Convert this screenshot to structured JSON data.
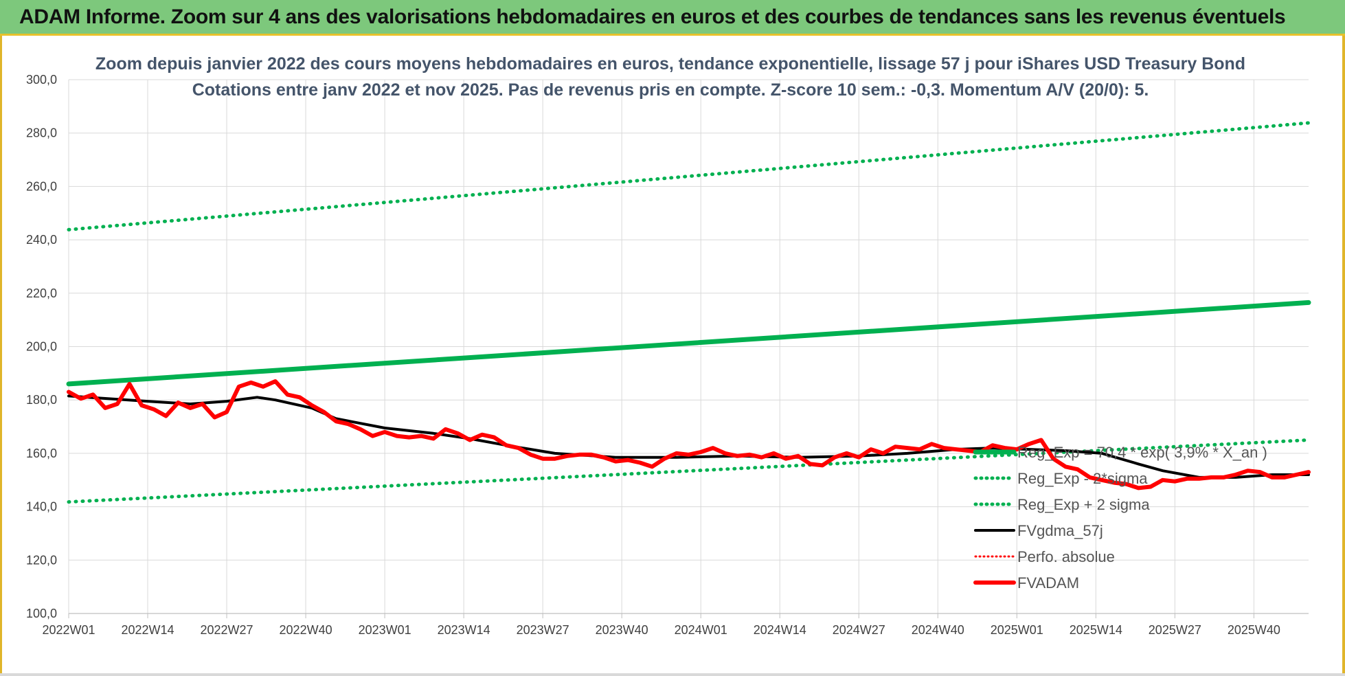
{
  "banner": {
    "title": "ADAM Informe. Zoom sur 4 ans des valorisations hebdomadaires en euros et des courbes de tendances sans les revenus éventuels"
  },
  "colors": {
    "banner_bg": "#7dc87c",
    "trend": "#00b050",
    "price": "#ff0000",
    "mma": "#000000",
    "grid": "#d9d9d9"
  },
  "chart_data": {
    "type": "line",
    "title": [
      "Zoom depuis janvier 2022 des cours moyens hebdomadaires en euros, tendance exponentielle, lissage 57 j pour iShares USD Treasury Bond",
      "Cotations entre janv 2022 et nov 2025. Pas de revenus pris en compte. Z-score 10 sem.: -0,3. Momentum A/V (20/0): 5."
    ],
    "ylim": [
      100,
      300
    ],
    "y_ticks": [
      "100,0",
      "120,0",
      "140,0",
      "160,0",
      "180,0",
      "200,0",
      "220,0",
      "240,0",
      "260,0",
      "280,0",
      "300,0"
    ],
    "x_ticks": [
      "2022W01",
      "2022W14",
      "2022W27",
      "2022W40",
      "2023W01",
      "2023W14",
      "2023W27",
      "2023W40",
      "2024W01",
      "2024W14",
      "2024W27",
      "2024W40",
      "2025W01",
      "2025W14",
      "2025W27",
      "2025W40"
    ],
    "x_weeks_total": 204,
    "legend": {
      "trend": "Reg_Exp = 70,4 * exp( 3,9% * X_an )",
      "lower": "Reg_Exp - 2*sigma",
      "upper": "Reg_Exp + 2 sigma",
      "mma": "FVgdma_57j",
      "perf": "Perfo. absolue",
      "price": "FVADAM"
    },
    "series": [
      {
        "name": "Reg_Exp = 70,4 * exp( 3,9% * X_an )",
        "style": "solid-thick",
        "x_weeks": [
          0,
          204
        ],
        "values": [
          186.0,
          216.5
        ]
      },
      {
        "name": "Reg_Exp - 2*sigma",
        "style": "dotted",
        "x_weeks": [
          0,
          204
        ],
        "values": [
          141.8,
          165.0
        ]
      },
      {
        "name": "Reg_Exp + 2 sigma",
        "style": "dotted",
        "x_weeks": [
          0,
          204
        ],
        "values": [
          243.8,
          283.8
        ]
      },
      {
        "name": "FVgdma_57j",
        "style": "solid",
        "x_weeks": [
          0,
          13,
          20,
          26,
          31,
          34,
          40,
          44,
          52,
          60,
          66,
          72,
          80,
          90,
          100,
          110,
          120,
          130,
          138,
          146,
          152,
          158,
          164,
          170,
          176,
          180,
          186,
          192,
          198,
          204
        ],
        "values": [
          181.5,
          179.5,
          178.5,
          179.5,
          181,
          180,
          177,
          173,
          169.5,
          167.5,
          165.5,
          163,
          160,
          158.5,
          158.5,
          159,
          158.5,
          159,
          160,
          161.5,
          162,
          161.5,
          161,
          160,
          156,
          153.5,
          151,
          151,
          152,
          152
        ]
      },
      {
        "name": "FVADAM",
        "style": "solid-thick",
        "x_weeks": [
          0,
          2,
          4,
          6,
          8,
          10,
          12,
          14,
          16,
          18,
          20,
          22,
          24,
          26,
          28,
          30,
          32,
          34,
          36,
          38,
          40,
          42,
          44,
          46,
          48,
          50,
          52,
          54,
          56,
          58,
          60,
          62,
          64,
          66,
          68,
          70,
          72,
          74,
          76,
          78,
          80,
          82,
          84,
          86,
          88,
          90,
          92,
          94,
          96,
          98,
          100,
          102,
          104,
          106,
          108,
          110,
          112,
          114,
          116,
          118,
          120,
          122,
          124,
          126,
          128,
          130,
          132,
          134,
          136,
          138,
          140,
          142,
          144,
          146,
          148,
          150,
          152,
          154,
          156,
          158,
          160,
          162,
          164,
          166,
          168,
          170,
          172,
          174,
          176,
          178,
          180,
          182,
          184,
          186,
          188,
          190,
          192,
          194,
          196,
          198,
          200,
          202,
          204
        ],
        "values": [
          183,
          180.5,
          182,
          177,
          178.5,
          186,
          178,
          176.5,
          174,
          179,
          177,
          178.5,
          173.5,
          175.5,
          185,
          186.5,
          185,
          187,
          182,
          181,
          178,
          175.5,
          172,
          171,
          169,
          166.5,
          168,
          166.5,
          166,
          166.5,
          165.5,
          169,
          167.5,
          165,
          167,
          166,
          163,
          162,
          159.5,
          158,
          158,
          159,
          159.5,
          159.5,
          158.5,
          157,
          157.5,
          156.5,
          155,
          158,
          160,
          159.5,
          160.5,
          162,
          160,
          159,
          159.5,
          158.5,
          160,
          158,
          159,
          156,
          155.5,
          158.5,
          160,
          158.5,
          161.5,
          160,
          162.5,
          162,
          161.5,
          163.5,
          162,
          161.5,
          161,
          160.5,
          163,
          162,
          161.5,
          163.5,
          165,
          158,
          155,
          154,
          151,
          150,
          149,
          148.5,
          147,
          147.5,
          150,
          149.5,
          150.5,
          150.5,
          151,
          151,
          152,
          153.5,
          153,
          151,
          151,
          152,
          153
        ]
      }
    ]
  }
}
